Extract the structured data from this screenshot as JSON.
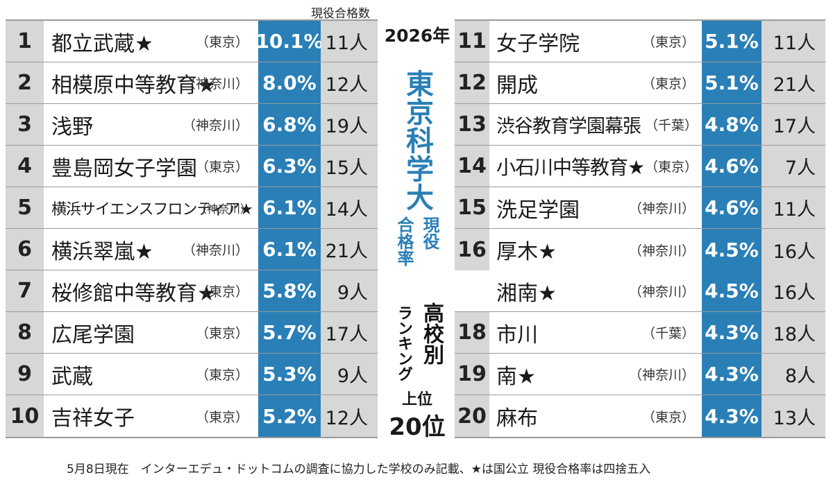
{
  "header": {
    "count_label": "現役合格数"
  },
  "title": {
    "year": "2026年",
    "university": "東京科学大",
    "rate_line1": "現役",
    "rate_line2": "合格率",
    "kobetsu": "高校別",
    "ranking": "ランキング",
    "joi": "上位",
    "top": "20位"
  },
  "left_rows": [
    {
      "rank": "1",
      "name": "都立武蔵★",
      "pref": "（東京）",
      "rate": "10.1%",
      "count": "11人"
    },
    {
      "rank": "2",
      "name": "相模原中等教育★",
      "pref": "（神奈川）",
      "rate": "8.0%",
      "count": "12人"
    },
    {
      "rank": "3",
      "name": "浅野",
      "pref": "（神奈川）",
      "rate": "6.8%",
      "count": "19人"
    },
    {
      "rank": "4",
      "name": "豊島岡女子学園",
      "pref": "（東京）",
      "rate": "6.3%",
      "count": "15人"
    },
    {
      "rank": "5",
      "name": "横浜サイエンスフロンティア★",
      "pref": "（神奈川）",
      "rate": "6.1%",
      "count": "14人"
    },
    {
      "rank": "6",
      "name": "横浜翠嵐★",
      "pref": "（神奈川）",
      "rate": "6.1%",
      "count": "21人"
    },
    {
      "rank": "7",
      "name": "桜修館中等教育★",
      "pref": "（東京）",
      "rate": "5.8%",
      "count": "9人"
    },
    {
      "rank": "8",
      "name": "広尾学園",
      "pref": "（東京）",
      "rate": "5.7%",
      "count": "17人"
    },
    {
      "rank": "9",
      "name": "武蔵",
      "pref": "（東京）",
      "rate": "5.3%",
      "count": "9人"
    },
    {
      "rank": "10",
      "name": "吉祥女子",
      "pref": "（東京）",
      "rate": "5.2%",
      "count": "12人"
    }
  ],
  "right_rows": [
    {
      "rank": "11",
      "name": "女子学院",
      "pref": "（東京）",
      "rate": "5.1%",
      "count": "11人"
    },
    {
      "rank": "12",
      "name": "開成",
      "pref": "（東京）",
      "rate": "5.1%",
      "count": "21人"
    },
    {
      "rank": "13",
      "name": "渋谷教育学園幕張",
      "pref": "（千葉）",
      "rate": "4.8%",
      "count": "17人"
    },
    {
      "rank": "14",
      "name": "小石川中等教育★",
      "pref": "（東京）",
      "rate": "4.6%",
      "count": "7人"
    },
    {
      "rank": "15",
      "name": "洗足学園",
      "pref": "（神奈川）",
      "rate": "4.6%",
      "count": "11人"
    },
    {
      "rank": "16",
      "name": "厚木★",
      "pref": "（神奈川）",
      "rate": "4.5%",
      "count": "16人"
    },
    {
      "rank": "",
      "name": "湘南★",
      "pref": "（神奈川）",
      "rate": "4.5%",
      "count": "16人"
    },
    {
      "rank": "18",
      "name": "市川",
      "pref": "（千葉）",
      "rate": "4.3%",
      "count": "18人"
    },
    {
      "rank": "19",
      "name": "南★",
      "pref": "（神奈川）",
      "rate": "4.3%",
      "count": "8人"
    },
    {
      "rank": "20",
      "name": "麻布",
      "pref": "（東京）",
      "rate": "4.3%",
      "count": "13人"
    }
  ],
  "footnote": "5月8日現在　インターエデュ・ドットコムの調査に協力した学校のみ記載、★は国公立 現役合格率は四捨五入"
}
